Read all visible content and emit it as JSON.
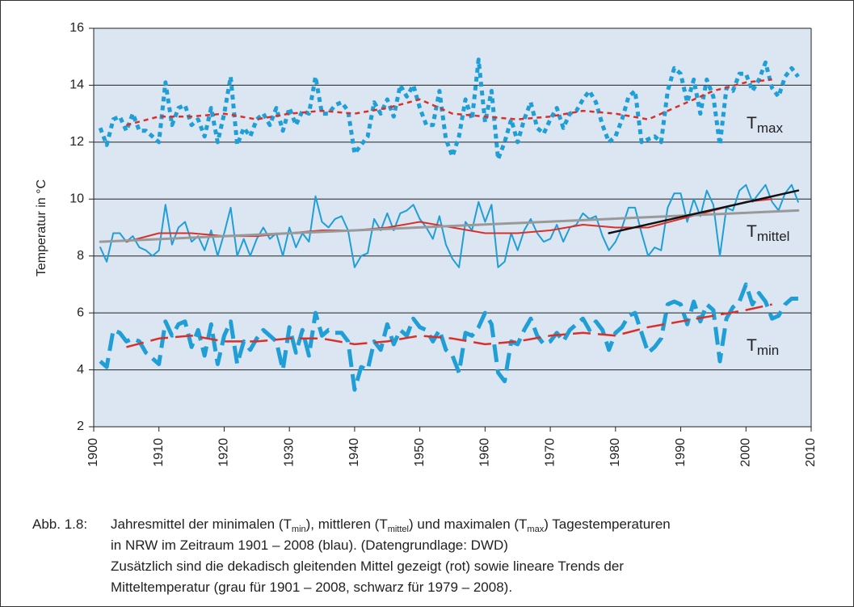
{
  "chart_data": {
    "type": "line",
    "ylabel": "Temperatur in °C",
    "xlim": [
      1900,
      2010
    ],
    "xticks": [
      1900,
      1910,
      1920,
      1930,
      1940,
      1950,
      1960,
      1970,
      1980,
      1990,
      2000,
      2010
    ],
    "ylim": [
      2,
      16
    ],
    "yticks": [
      2,
      4,
      6,
      8,
      10,
      12,
      14,
      16
    ],
    "grid": true,
    "background": "#dce6f2",
    "x": [
      1901,
      1902,
      1903,
      1904,
      1905,
      1906,
      1907,
      1908,
      1909,
      1910,
      1911,
      1912,
      1913,
      1914,
      1915,
      1916,
      1917,
      1918,
      1919,
      1920,
      1921,
      1922,
      1923,
      1924,
      1925,
      1926,
      1927,
      1928,
      1929,
      1930,
      1931,
      1932,
      1933,
      1934,
      1935,
      1936,
      1937,
      1938,
      1939,
      1940,
      1941,
      1942,
      1943,
      1944,
      1945,
      1946,
      1947,
      1948,
      1949,
      1950,
      1951,
      1952,
      1953,
      1954,
      1955,
      1956,
      1957,
      1958,
      1959,
      1960,
      1961,
      1962,
      1963,
      1964,
      1965,
      1966,
      1967,
      1968,
      1969,
      1970,
      1971,
      1972,
      1973,
      1974,
      1975,
      1976,
      1977,
      1978,
      1979,
      1980,
      1981,
      1982,
      1983,
      1984,
      1985,
      1986,
      1987,
      1988,
      1989,
      1990,
      1991,
      1992,
      1993,
      1994,
      1995,
      1996,
      1997,
      1998,
      1999,
      2000,
      2001,
      2002,
      2003,
      2004,
      2005,
      2006,
      2007,
      2008
    ],
    "series": [
      {
        "color": "#1f9fd6",
        "style": "dotted",
        "width": 5,
        "values": [
          12.5,
          11.9,
          12.8,
          12.9,
          12.4,
          13.0,
          12.4,
          12.4,
          12.2,
          12.0,
          14.1,
          12.6,
          13.2,
          13.3,
          12.6,
          12.8,
          12.2,
          13.2,
          12.0,
          13.0,
          14.3,
          11.9,
          12.5,
          12.2,
          12.8,
          13.0,
          12.6,
          13.2,
          12.4,
          13.2,
          12.6,
          13.1,
          13.0,
          14.3,
          13.0,
          13.0,
          13.3,
          13.4,
          13.1,
          11.6,
          11.9,
          12.2,
          13.4,
          13.0,
          13.5,
          12.9,
          14.0,
          13.6,
          14.0,
          13.2,
          12.6,
          12.6,
          13.8,
          12.1,
          11.5,
          12.2,
          13.5,
          12.8,
          14.9,
          12.7,
          13.8,
          11.4,
          12.0,
          12.8,
          12.0,
          12.8,
          13.4,
          12.5,
          12.3,
          12.8,
          13.2,
          12.5,
          13.0,
          13.1,
          13.5,
          13.8,
          13.4,
          12.6,
          12.0,
          12.2,
          12.8,
          13.6,
          13.8,
          12.0,
          12.1,
          12.2,
          12.0,
          13.8,
          14.6,
          14.4,
          13.4,
          14.2,
          13.0,
          14.2,
          13.6,
          11.9,
          13.9,
          13.8,
          14.4,
          14.4,
          13.8,
          14.2,
          14.8,
          13.9,
          13.6,
          14.3,
          14.6,
          14.3
        ]
      },
      {
        "color": "#1f9fd6",
        "style": "solid",
        "width": 2,
        "values": [
          8.3,
          7.8,
          8.8,
          8.8,
          8.5,
          8.7,
          8.3,
          8.2,
          8.0,
          8.2,
          9.8,
          8.4,
          9.0,
          9.2,
          8.5,
          8.7,
          8.2,
          8.9,
          8.0,
          8.8,
          9.7,
          8.0,
          8.6,
          8.0,
          8.6,
          9.0,
          8.6,
          8.8,
          8.0,
          9.0,
          8.3,
          8.8,
          8.5,
          10.1,
          9.2,
          9.0,
          9.3,
          9.4,
          8.9,
          7.6,
          8.0,
          8.1,
          9.3,
          8.9,
          9.5,
          8.9,
          9.5,
          9.6,
          9.8,
          9.3,
          9.0,
          8.6,
          9.4,
          8.4,
          7.9,
          7.6,
          9.2,
          8.9,
          9.9,
          9.2,
          9.8,
          7.6,
          7.8,
          8.8,
          8.2,
          8.9,
          9.3,
          8.8,
          8.5,
          8.6,
          9.1,
          8.5,
          9.0,
          9.1,
          9.5,
          9.3,
          9.4,
          8.7,
          8.2,
          8.5,
          9.0,
          9.7,
          9.7,
          8.8,
          8.0,
          8.3,
          8.2,
          9.7,
          10.2,
          10.2,
          9.2,
          10.0,
          9.4,
          10.3,
          9.8,
          8.0,
          9.7,
          9.6,
          10.3,
          10.5,
          9.9,
          10.2,
          10.5,
          9.9,
          9.6,
          10.2,
          10.5,
          9.9
        ]
      },
      {
        "color": "#1f9fd6",
        "style": "dashed",
        "width": 5,
        "values": [
          4.3,
          4.1,
          5.4,
          5.3,
          5.0,
          5.1,
          5.0,
          4.6,
          4.4,
          4.2,
          5.7,
          5.2,
          5.6,
          5.7,
          4.8,
          5.4,
          4.5,
          5.6,
          4.2,
          5.2,
          5.7,
          4.2,
          5.0,
          4.7,
          5.1,
          5.4,
          5.2,
          5.0,
          4.0,
          5.5,
          4.6,
          5.4,
          4.5,
          6.0,
          5.2,
          5.4,
          5.3,
          5.3,
          5.0,
          3.3,
          4.1,
          4.0,
          5.0,
          4.7,
          5.6,
          4.9,
          5.4,
          5.2,
          5.8,
          5.5,
          5.4,
          5.0,
          5.4,
          4.7,
          4.5,
          3.9,
          5.3,
          5.2,
          5.5,
          6.0,
          5.6,
          3.9,
          3.6,
          5.0,
          4.9,
          5.4,
          5.8,
          5.2,
          4.9,
          5.0,
          5.3,
          5.0,
          5.4,
          5.6,
          5.8,
          5.4,
          5.7,
          5.4,
          4.7,
          5.3,
          5.5,
          5.9,
          6.0,
          5.3,
          4.6,
          4.8,
          5.1,
          6.3,
          6.4,
          6.3,
          5.6,
          6.4,
          5.7,
          6.3,
          6.1,
          4.3,
          5.8,
          6.2,
          6.4,
          7.0,
          6.3,
          6.7,
          6.4,
          5.8,
          5.9,
          6.3,
          6.5,
          6.5
        ]
      },
      {
        "color": "#d9302a",
        "style": "dotted",
        "width": 2.5,
        "x": [
          1905,
          1910,
          1915,
          1920,
          1925,
          1930,
          1935,
          1940,
          1945,
          1950,
          1955,
          1960,
          1965,
          1970,
          1975,
          1980,
          1985,
          1990,
          1995,
          2000,
          2004
        ],
        "values": [
          12.6,
          12.9,
          12.9,
          13.0,
          12.8,
          13.0,
          13.1,
          13.0,
          13.2,
          13.5,
          13.0,
          12.9,
          12.8,
          12.9,
          13.1,
          13.0,
          12.8,
          13.3,
          13.8,
          14.1,
          14.2
        ]
      },
      {
        "color": "#d9302a",
        "style": "solid",
        "width": 2,
        "x": [
          1905,
          1910,
          1915,
          1920,
          1925,
          1930,
          1935,
          1940,
          1945,
          1950,
          1955,
          1960,
          1965,
          1970,
          1975,
          1980,
          1985,
          1990,
          1995,
          2000,
          2004
        ],
        "values": [
          8.5,
          8.8,
          8.8,
          8.7,
          8.7,
          8.8,
          8.9,
          8.9,
          9.0,
          9.2,
          9.0,
          8.8,
          8.8,
          8.9,
          9.1,
          9.0,
          9.0,
          9.3,
          9.6,
          9.9,
          10.0
        ]
      },
      {
        "color": "#d9302a",
        "style": "dashed",
        "width": 2.5,
        "x": [
          1905,
          1910,
          1915,
          1920,
          1925,
          1930,
          1935,
          1940,
          1945,
          1950,
          1955,
          1960,
          1965,
          1970,
          1975,
          1980,
          1985,
          1990,
          1995,
          2000,
          2004
        ],
        "values": [
          4.8,
          5.1,
          5.2,
          5.0,
          5.0,
          5.1,
          5.1,
          4.9,
          5.0,
          5.2,
          5.1,
          4.9,
          5.0,
          5.2,
          5.3,
          5.2,
          5.5,
          5.7,
          5.9,
          6.1,
          6.3
        ]
      },
      {
        "color": "#999999",
        "style": "solid",
        "width": 3,
        "x": [
          1901,
          2008
        ],
        "values": [
          8.5,
          9.6
        ]
      },
      {
        "color": "#111111",
        "style": "solid",
        "width": 2.5,
        "x": [
          1979,
          2008
        ],
        "values": [
          8.8,
          10.3
        ]
      }
    ],
    "annotations": [
      {
        "text": "T",
        "sub": "max"
      },
      {
        "text": "T",
        "sub": "mittel"
      },
      {
        "text": "T",
        "sub": "min"
      }
    ]
  },
  "caption": {
    "label": "Abb. 1.8:",
    "line1": [
      "Jahresmittel der minimalen (T",
      "min",
      "), mittleren (T",
      "mittel",
      ") und maximalen (T",
      "max",
      ") Tagestemperaturen"
    ],
    "line2": "in NRW im Zeitraum 1901 – 2008 (blau). (Datengrundlage: DWD)",
    "line3": "Zusätzlich sind die dekadisch gleitenden Mittel gezeigt (rot) sowie lineare Trends der",
    "line4": "Mitteltemperatur (grau für 1901 – 2008, schwarz für 1979 – 2008)."
  }
}
